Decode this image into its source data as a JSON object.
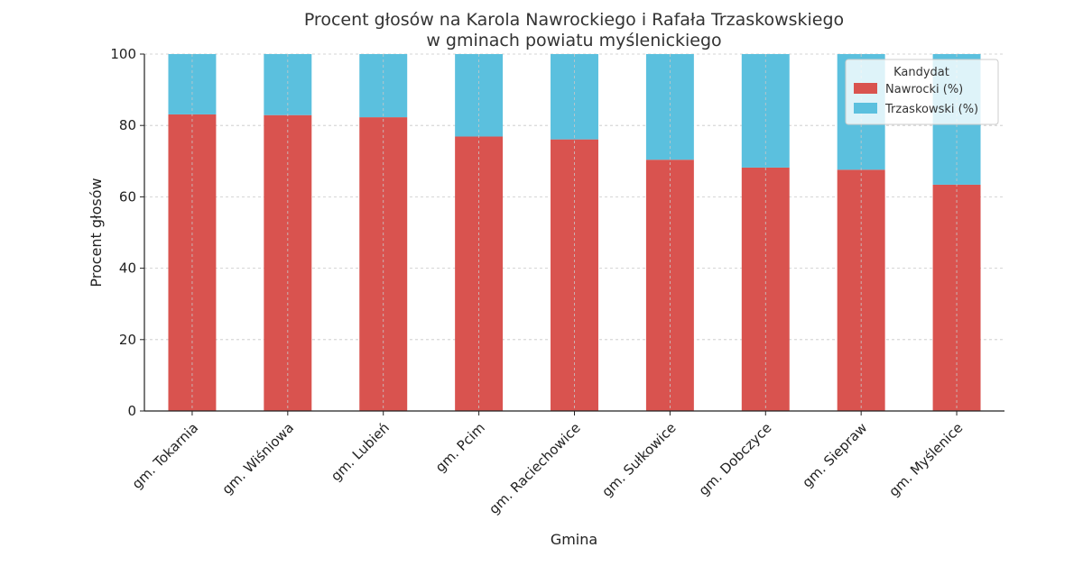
{
  "chart_data": {
    "type": "bar",
    "stacked": true,
    "title_lines": [
      "Procent głosów na Karola Nawrockiego i Rafała Trzaskowskiego",
      "w gminach powiatu myślenickiego"
    ],
    "xlabel": "Gmina",
    "ylabel": "Procent głosów",
    "ylim": [
      0,
      100
    ],
    "yticks": [
      0,
      20,
      40,
      60,
      80,
      100
    ],
    "grid": true,
    "legend": {
      "title": "Kandydat",
      "placement": "top-right"
    },
    "categories": [
      "gm. Tokarnia",
      "gm. Wiśniowa",
      "gm. Lubień",
      "gm. Pcim",
      "gm. Raciechowice",
      "gm. Sułkowice",
      "gm. Dobczyce",
      "gm. Siepraw",
      "gm. Myślenice"
    ],
    "series": [
      {
        "name": "Nawrocki (%)",
        "color": "#d9534f",
        "values": [
          83.1,
          82.9,
          82.3,
          76.9,
          76.1,
          70.4,
          68.2,
          67.6,
          63.4
        ]
      },
      {
        "name": "Trzaskowski (%)",
        "color": "#5bc0de",
        "values": [
          16.9,
          17.1,
          17.7,
          23.1,
          23.9,
          29.6,
          31.8,
          32.4,
          36.6
        ]
      }
    ]
  }
}
